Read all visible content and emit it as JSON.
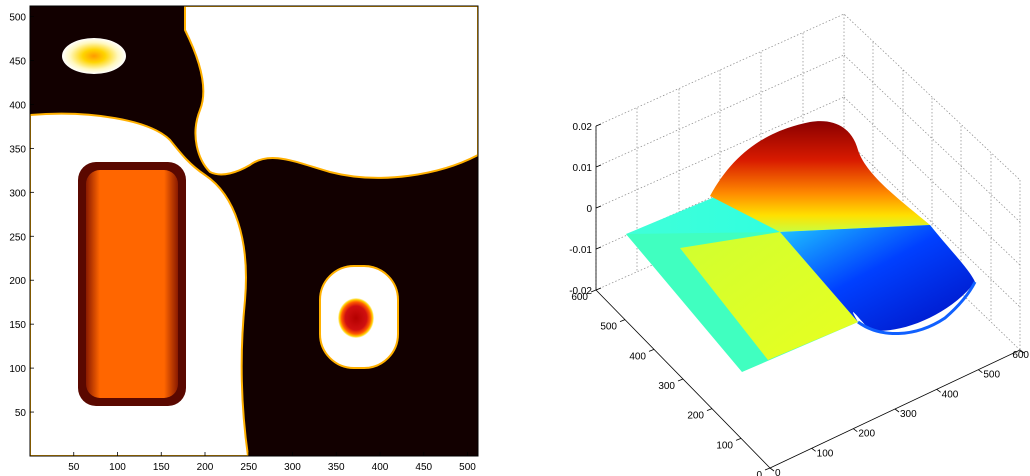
{
  "chart_data": [
    {
      "type": "heatmap",
      "colormap": "hot",
      "title": "",
      "xlabel": "",
      "ylabel": "",
      "xlim": [
        0,
        512
      ],
      "ylim": [
        0,
        512
      ],
      "x_ticks": [
        "50",
        "100",
        "150",
        "200",
        "250",
        "300",
        "350",
        "400",
        "450",
        "500"
      ],
      "y_ticks": [
        "50",
        "100",
        "150",
        "200",
        "250",
        "300",
        "350",
        "400",
        "450",
        "500"
      ],
      "grid": false
    },
    {
      "type": "surface",
      "colormap": "jet",
      "title": "",
      "xlim": [
        0,
        600
      ],
      "ylim": [
        0,
        600
      ],
      "zlim": [
        -0.02,
        0.02
      ],
      "z_ticks": [
        "0.02",
        "0.01",
        "0",
        "-0.01",
        "-0.02"
      ],
      "y_ticks": [
        "600",
        "500",
        "400",
        "300",
        "200",
        "100",
        "0"
      ],
      "x_ticks": [
        "0",
        "100",
        "200",
        "300",
        "400",
        "500",
        "600"
      ],
      "grid": true
    }
  ]
}
